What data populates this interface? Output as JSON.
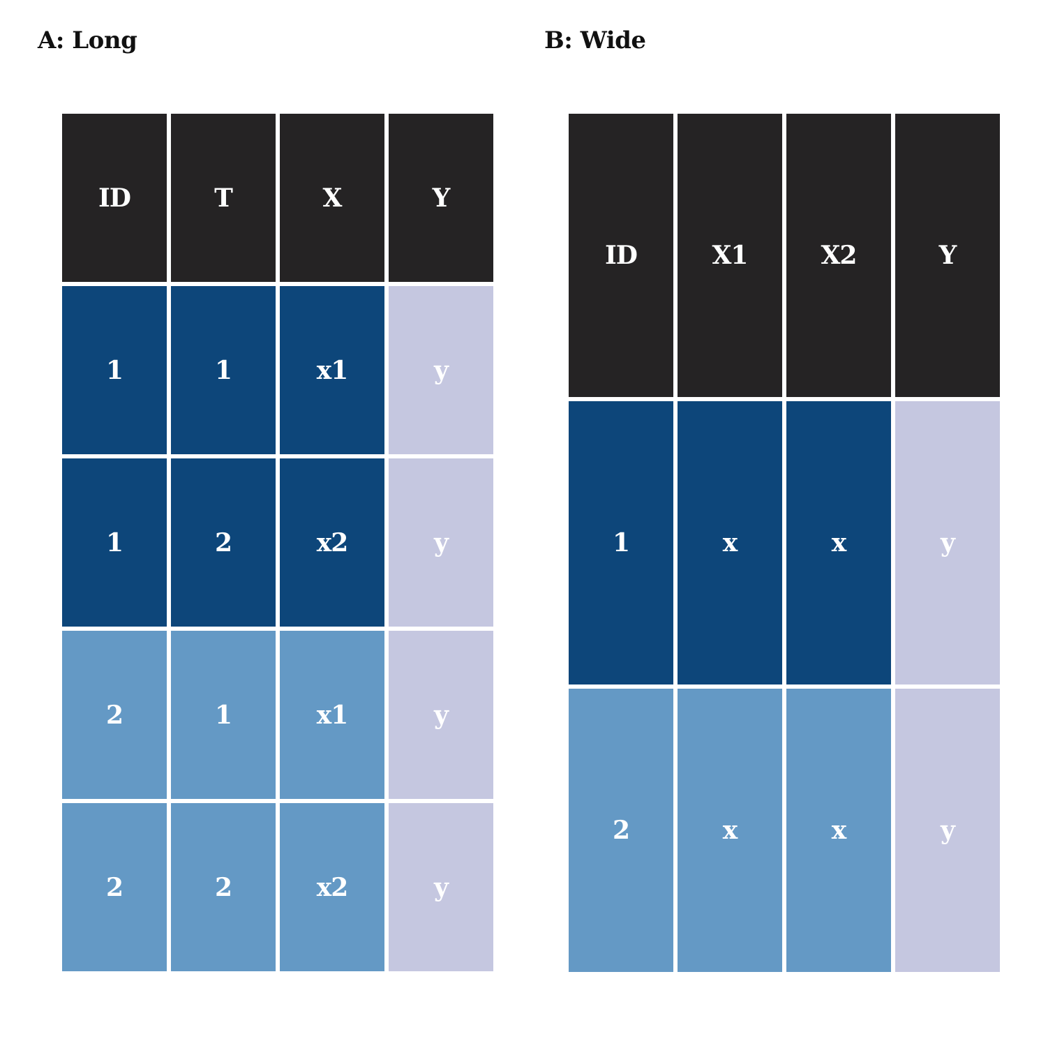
{
  "panels": {
    "long": {
      "title": "A: Long",
      "headers": [
        "ID",
        "T",
        "X",
        "Y"
      ],
      "rows": [
        [
          "1",
          "1",
          "x1",
          "y"
        ],
        [
          "1",
          "2",
          "x2",
          "y"
        ],
        [
          "2",
          "1",
          "x1",
          "y"
        ],
        [
          "2",
          "2",
          "x2",
          "y"
        ]
      ]
    },
    "wide": {
      "title": "B: Wide",
      "headers": [
        "ID",
        "X1",
        "X2",
        "Y"
      ],
      "rows": [
        [
          "1",
          "x",
          "x",
          "y"
        ],
        [
          "2",
          "x",
          "x",
          "y"
        ]
      ]
    }
  },
  "colors": {
    "header": "#252324",
    "id1": "#0d467a",
    "id2": "#6499c5",
    "outcome": "#c5c7e0",
    "text": "#ffffff"
  }
}
